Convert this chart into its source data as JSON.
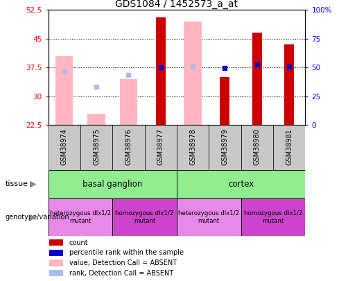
{
  "title": "GDS1084 / 1452573_a_at",
  "samples": [
    "GSM38974",
    "GSM38975",
    "GSM38976",
    "GSM38977",
    "GSM38978",
    "GSM38979",
    "GSM38980",
    "GSM38981"
  ],
  "ylim_left": [
    22.5,
    52.5
  ],
  "ylim_right": [
    0,
    100
  ],
  "yticks_left": [
    22.5,
    30,
    37.5,
    45,
    52.5
  ],
  "yticks_right": [
    0,
    25,
    50,
    75,
    100
  ],
  "ytick_labels_right": [
    "0",
    "25",
    "50",
    "75",
    "100%"
  ],
  "red_bars": [
    null,
    null,
    null,
    50.5,
    null,
    35.0,
    46.5,
    43.5
  ],
  "pink_bars": [
    40.5,
    25.5,
    34.5,
    null,
    49.5,
    null,
    null,
    null
  ],
  "blue_squares": [
    null,
    null,
    null,
    37.5,
    null,
    37.3,
    38.2,
    37.8
  ],
  "light_blue_squares": [
    36.5,
    32.5,
    35.5,
    null,
    37.8,
    null,
    null,
    null
  ],
  "tissue_groups": [
    {
      "label": "basal ganglion",
      "span": [
        0,
        4
      ],
      "color": "#90ee90"
    },
    {
      "label": "cortex",
      "span": [
        4,
        8
      ],
      "color": "#90ee90"
    }
  ],
  "genotype_groups": [
    {
      "label": "heterozygous dlx1/2\nmutant",
      "span": [
        0,
        2
      ],
      "color": "#e888e8"
    },
    {
      "label": "homozygous dlx1/2\nmutant",
      "span": [
        2,
        4
      ],
      "color": "#cc44cc"
    },
    {
      "label": "heterozygous dlx1/2\nmutant",
      "span": [
        4,
        6
      ],
      "color": "#e888e8"
    },
    {
      "label": "homozygous dlx1/2\nmutant",
      "span": [
        6,
        8
      ],
      "color": "#cc44cc"
    }
  ],
  "red_color": "#cc0000",
  "pink_color": "#ffb6c1",
  "blue_color": "#0000cc",
  "light_blue_color": "#aabbee",
  "bg_color": "#c8c8c8",
  "legend_items": [
    {
      "label": "count",
      "color": "#cc0000"
    },
    {
      "label": "percentile rank within the sample",
      "color": "#0000cc"
    },
    {
      "label": "value, Detection Call = ABSENT",
      "color": "#ffb6c1"
    },
    {
      "label": "rank, Detection Call = ABSENT",
      "color": "#aabbee"
    }
  ]
}
